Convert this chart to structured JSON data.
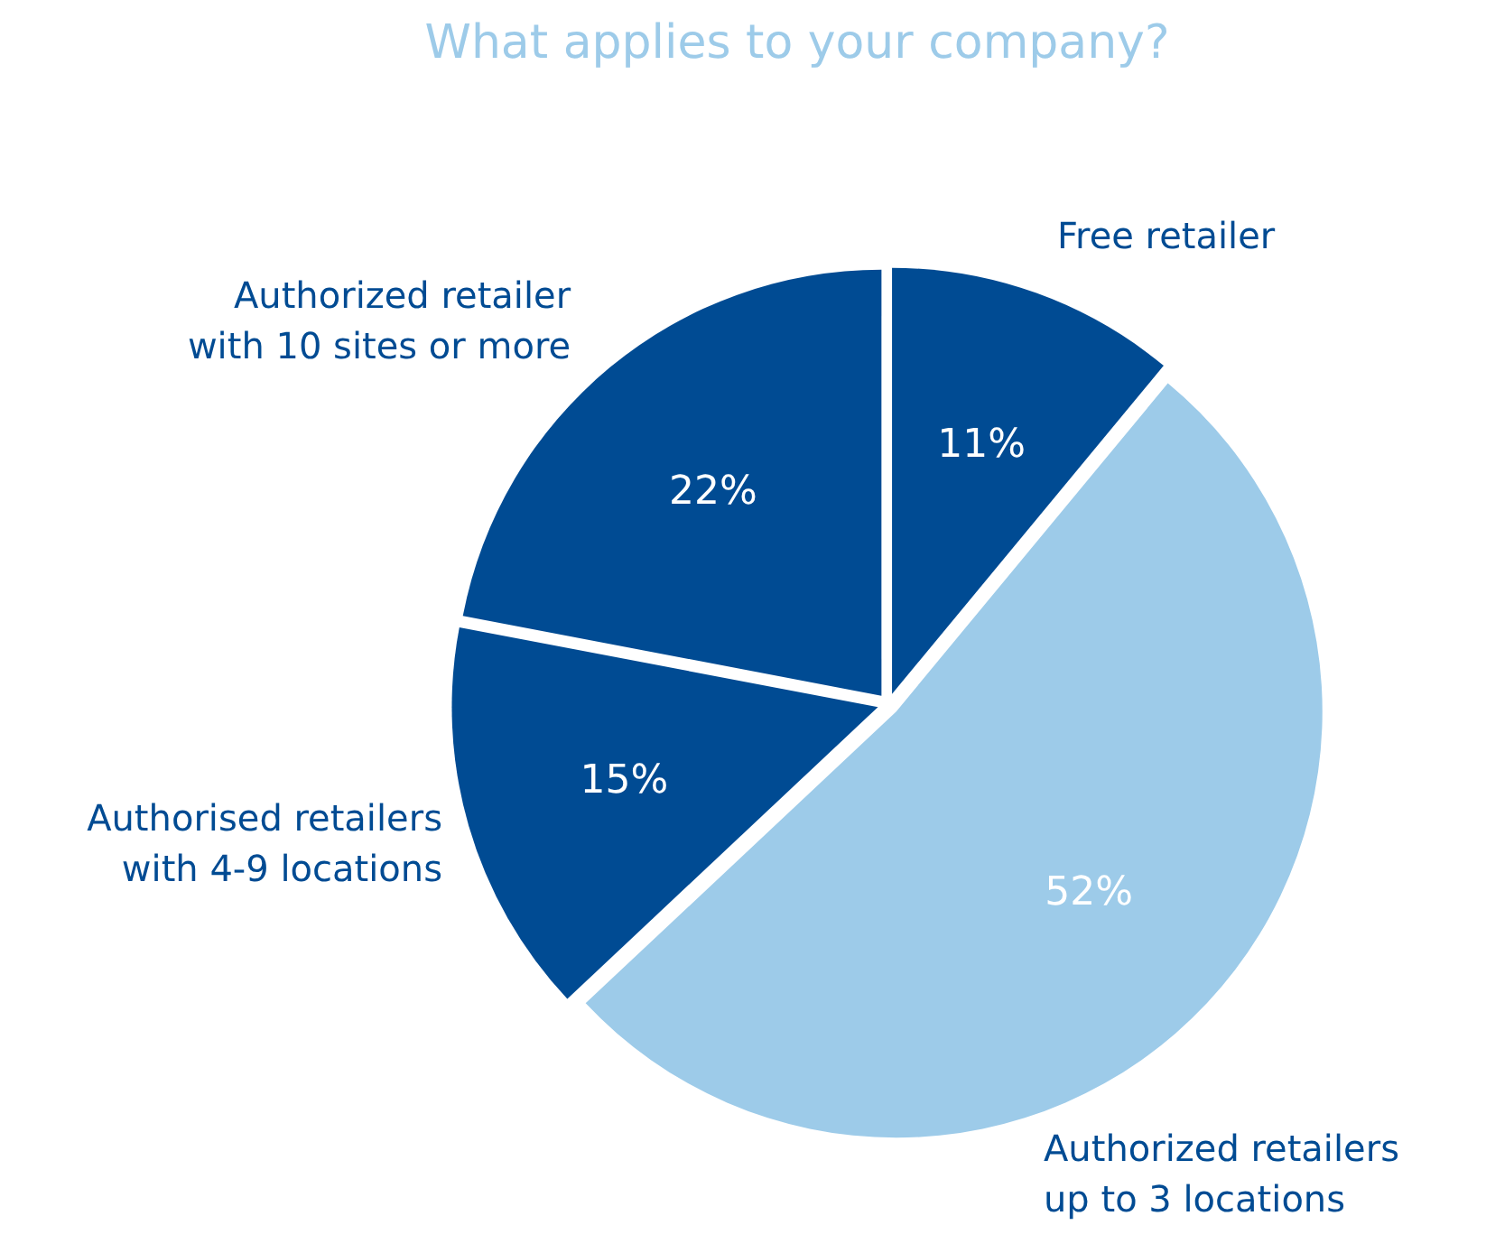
{
  "chart_data": {
    "type": "pie",
    "title": "What applies to your company?",
    "categories": [
      "Free retailer",
      "Authorized retailers up to 3 locations",
      "Authorised retailers with 4-9 locations",
      "Authorized retailer with 10 sites or more"
    ],
    "values": [
      11,
      52,
      15,
      22
    ],
    "colors": [
      "#004b93",
      "#9dcbe9",
      "#004b93",
      "#004b93"
    ],
    "value_labels": [
      "11%",
      "52%",
      "15%",
      "22%"
    ]
  }
}
